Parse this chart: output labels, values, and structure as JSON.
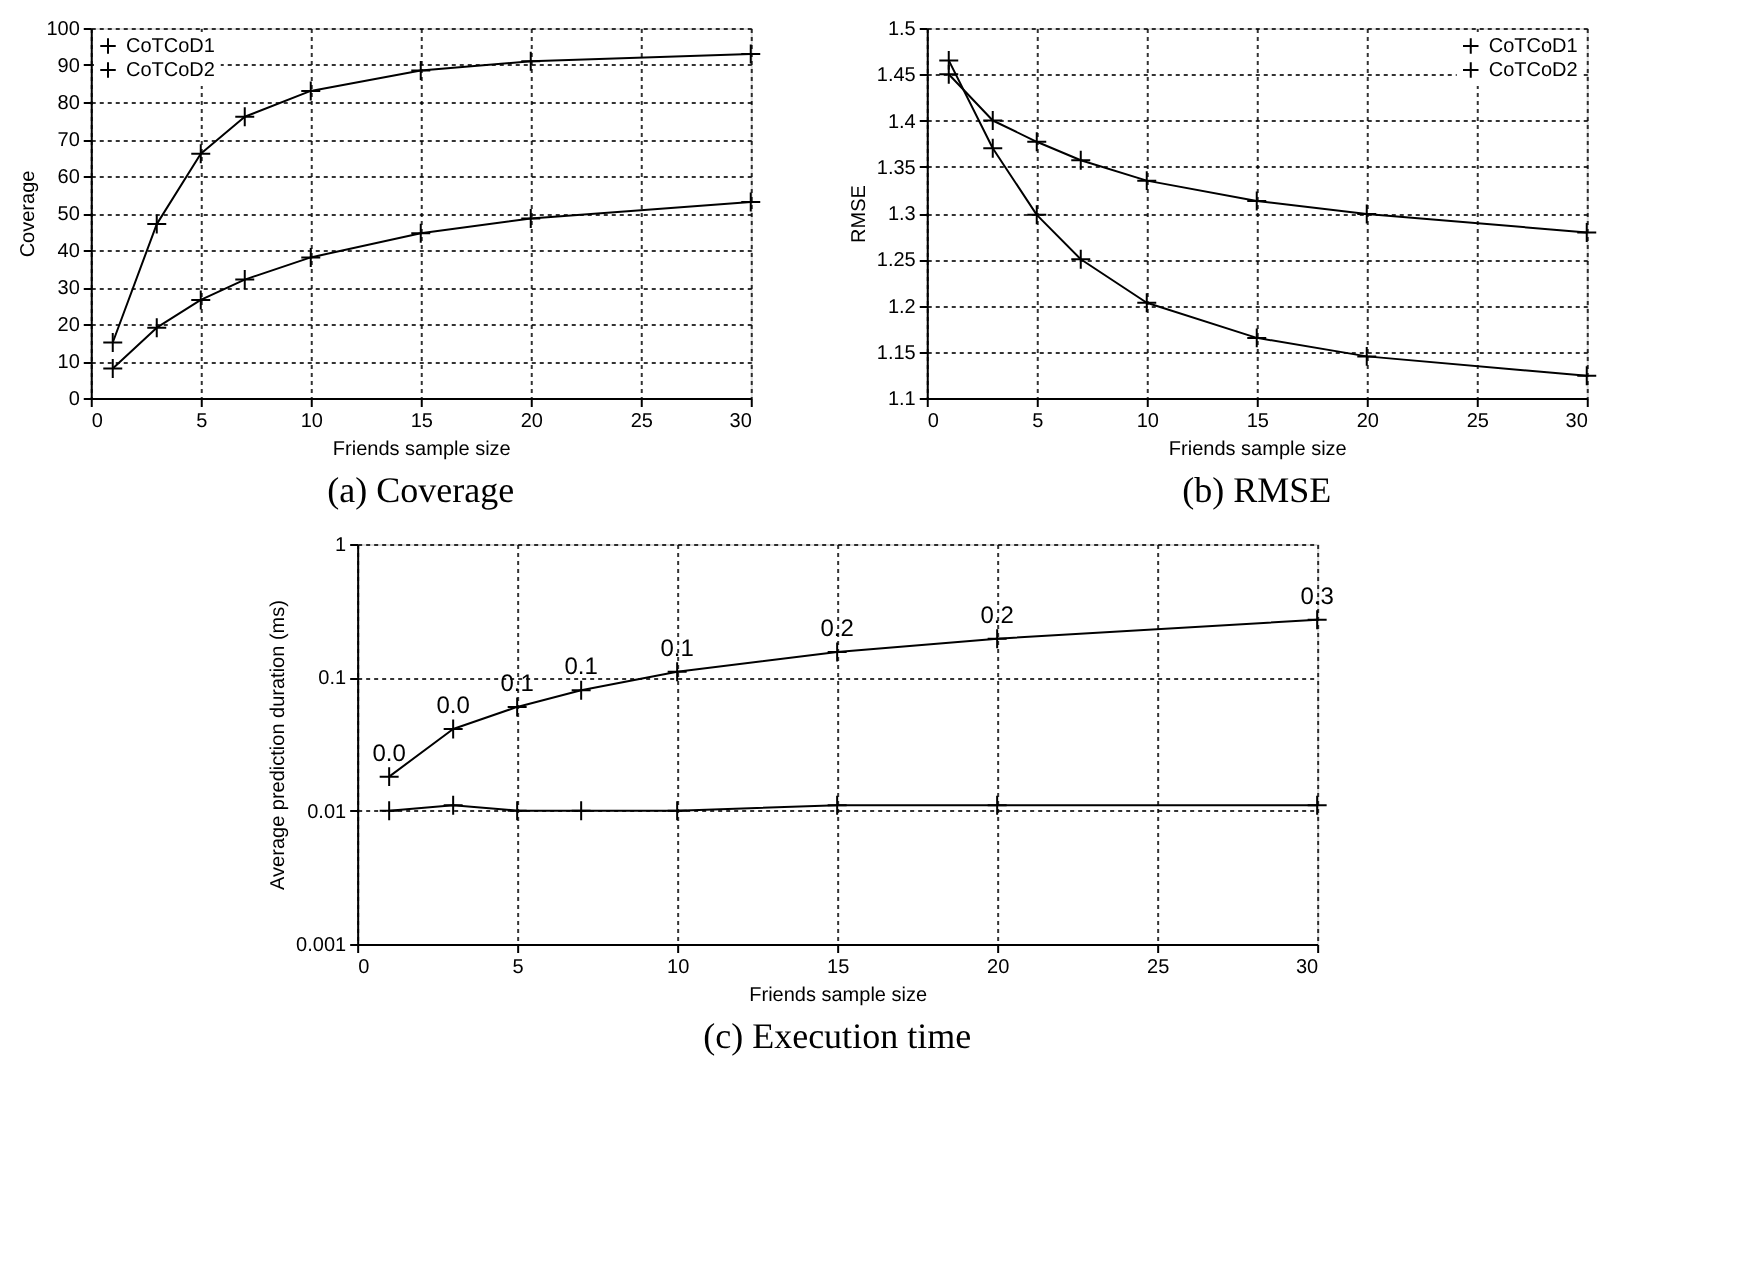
{
  "chart_data": [
    {
      "type": "line",
      "title": "(a) Coverage",
      "xlabel": "Friends sample size",
      "ylabel": "Coverage",
      "x": [
        1,
        3,
        5,
        7,
        10,
        15,
        20,
        30
      ],
      "xlim": [
        0,
        30
      ],
      "xticks": [
        0,
        5,
        10,
        15,
        20,
        25,
        30
      ],
      "ylim": [
        0,
        100
      ],
      "yticks": [
        0,
        10,
        20,
        30,
        40,
        50,
        60,
        70,
        80,
        90,
        100
      ],
      "grid": true,
      "legend": "top left",
      "line_style": "solid",
      "series": [
        {
          "name": "CoTCoD1",
          "color": "#000000",
          "marker": "cross",
          "values": [
            8,
            19,
            26.5,
            32,
            38,
            44.5,
            48.5,
            53
          ]
        },
        {
          "name": "CoTCoD2",
          "color": "#000000",
          "marker": "cross",
          "values": [
            15,
            47,
            66,
            76,
            83,
            88.5,
            91,
            93
          ]
        }
      ]
    },
    {
      "type": "line",
      "title": "(b) RMSE",
      "xlabel": "Friends sample size",
      "ylabel": "RMSE",
      "x": [
        1,
        3,
        5,
        7,
        10,
        15,
        20,
        30
      ],
      "xlim": [
        0,
        30
      ],
      "xticks": [
        0,
        5,
        10,
        15,
        20,
        25,
        30
      ],
      "ylim": [
        1.1,
        1.5
      ],
      "yticks": [
        1.1,
        1.15,
        1.2,
        1.25,
        1.3,
        1.35,
        1.4,
        1.45,
        1.5
      ],
      "grid": true,
      "legend": "top right",
      "line_style": "solid",
      "series": [
        {
          "name": "CoTCoD1",
          "color": "#000000",
          "marker": "cross",
          "values": [
            1.45,
            1.4,
            1.377,
            1.357,
            1.335,
            1.313,
            1.299,
            1.279
          ]
        },
        {
          "name": "CoTCoD2",
          "color": "#000000",
          "marker": "cross",
          "values": [
            1.465,
            1.37,
            1.298,
            1.25,
            1.203,
            1.165,
            1.145,
            1.124
          ]
        }
      ]
    },
    {
      "type": "line",
      "title": "(c) Execution time",
      "xlabel": "Friends sample size",
      "ylabel": "Average prediction duration (ms)",
      "x": [
        1,
        3,
        5,
        7,
        10,
        15,
        20,
        30
      ],
      "xlim": [
        0,
        30
      ],
      "xticks": [
        0,
        5,
        10,
        15,
        20,
        25,
        30
      ],
      "ylim": [
        0.001,
        1
      ],
      "yticks": [
        0.001,
        0.01,
        0.1,
        1
      ],
      "log": "y",
      "grid": true,
      "legend": "top left",
      "line_style": "solid",
      "series": [
        {
          "name": "CoTCoD1",
          "color": "#000000",
          "marker": "cross",
          "values": [
            0.01,
            0.011,
            0.01,
            0.01,
            0.01,
            0.011,
            0.011,
            0.011
          ]
        },
        {
          "name": "CoTCoD2",
          "color": "#000000",
          "marker": "cross",
          "values": [
            0.018,
            0.041,
            0.06,
            0.08,
            0.11,
            0.155,
            0.195,
            0.27
          ],
          "value_labels": [
            "0.0",
            "0.0",
            "0.1",
            "0.1",
            "0.1",
            "0.2",
            "0.2",
            "0.3"
          ]
        }
      ]
    }
  ]
}
